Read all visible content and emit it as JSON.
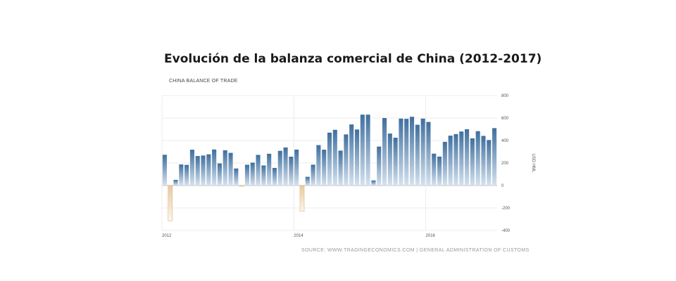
{
  "title": "Evolución de la balanza comercial de China (2012-2017)",
  "chart_data": {
    "type": "bar",
    "title": "CHINA BALANCE OF TRADE",
    "ylabel": "USD HML",
    "source": "SOURCE: WWW.TRADINGECONOMICS.COM | GENERAL ADMINISTRATION OF CUSTOMS",
    "ylim": [
      -400,
      800
    ],
    "yticks": [
      800,
      600,
      400,
      200,
      0,
      -200,
      -400
    ],
    "ytick_labels": [
      "800",
      "600",
      "400",
      "200",
      "0",
      "-200",
      "-400"
    ],
    "x_labels": [
      {
        "label": "2012",
        "index": 0
      },
      {
        "label": "2014",
        "index": 24
      },
      {
        "label": "2016",
        "index": 48
      }
    ],
    "grid": true,
    "colors": {
      "positive": "#3f6f9e",
      "positive_light": "#d5e2ef",
      "negative": "#e8c9a0",
      "negative_light": "#fdf6ec"
    },
    "values": [
      273,
      -315,
      50,
      187,
      183,
      318,
      262,
      266,
      277,
      320,
      196,
      313,
      290,
      151,
      -9,
      184,
      203,
      272,
      178,
      282,
      156,
      308,
      338,
      256,
      319,
      -230,
      77,
      185,
      359,
      318,
      470,
      495,
      310,
      454,
      543,
      498,
      630,
      630,
      45,
      346,
      600,
      462,
      425,
      595,
      593,
      611,
      540,
      595,
      565,
      283,
      257,
      388,
      443,
      457,
      480,
      500,
      419,
      483,
      441,
      404,
      510
    ]
  }
}
